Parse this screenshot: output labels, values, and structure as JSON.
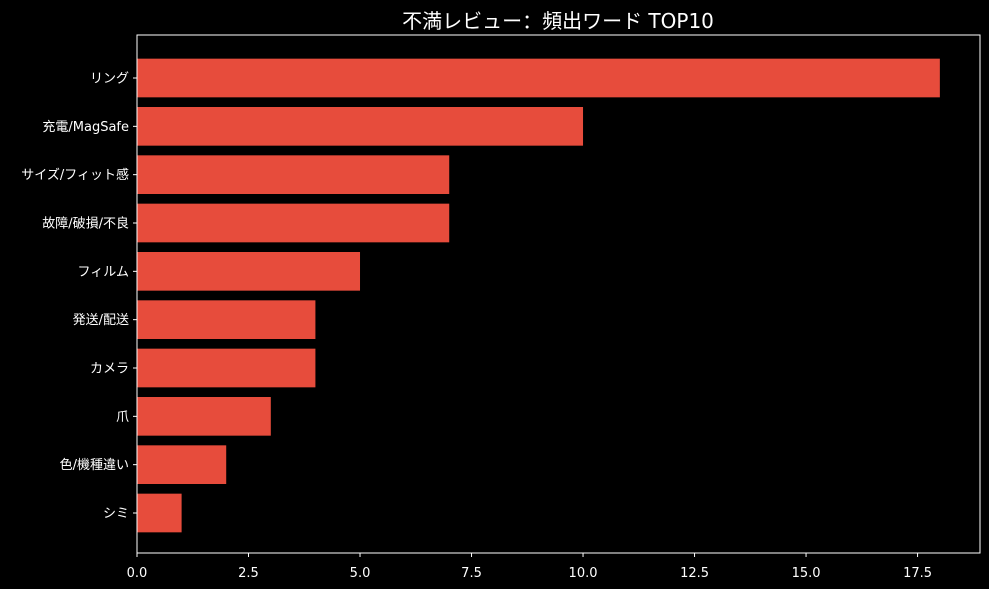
{
  "chart_data": {
    "type": "bar",
    "orientation": "horizontal",
    "title": "不満レビュー：頻出ワード TOP10",
    "xlabel": "",
    "ylabel": "",
    "categories": [
      "リング",
      "充電/MagSafe",
      "サイズ/フィット感",
      "故障/破損/不良",
      "フィルム",
      "発送/配送",
      "カメラ",
      "爪",
      "色/機種違い",
      "シミ"
    ],
    "values": [
      18,
      10,
      7,
      7,
      5,
      4,
      4,
      3,
      2,
      1
    ],
    "xlim": [
      0,
      18.9
    ],
    "xticks": [
      "0.0",
      "2.5",
      "5.0",
      "7.5",
      "10.0",
      "12.5",
      "15.0",
      "17.5"
    ],
    "grid": false,
    "colors": {
      "bar": "#e74c3c",
      "background": "#000000",
      "axis": "#ffffff",
      "text": "#ffffff"
    }
  }
}
